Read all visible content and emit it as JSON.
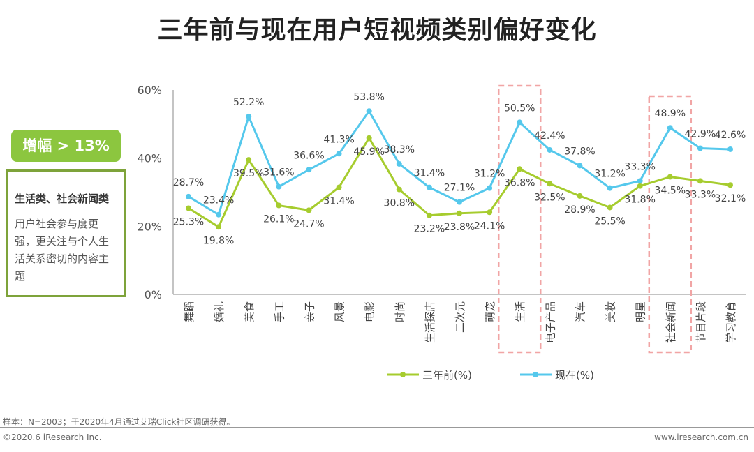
{
  "title": "三年前与现在用户短视频类别偏好变化",
  "badge": "增幅 > 13%",
  "note": {
    "heading": "生活类、社会新闻类",
    "body": "用户社会参与度更强，更关注与个人生活关系密切的内容主题"
  },
  "footer": {
    "source": "样本：N=2003；于2020年4月通过艾瑞Click社区调研获得。",
    "copyright": "©2020.6 iResearch Inc.",
    "website": "www.iresearch.com.cn"
  },
  "chart_data": {
    "type": "line",
    "title": "三年前与现在用户短视频类别偏好变化",
    "categories": [
      "舞蹈",
      "婚礼",
      "美食",
      "手工",
      "亲子",
      "风景",
      "电影",
      "时尚",
      "生活探店",
      "二次元",
      "萌宠",
      "生活",
      "电子产品",
      "汽车",
      "美妆",
      "明星",
      "社会新闻",
      "节目片段",
      "学习教育"
    ],
    "series": [
      {
        "name": "三年前(%)",
        "color": "#a6cc2e",
        "values": [
          25.3,
          19.8,
          39.5,
          26.1,
          24.7,
          31.4,
          45.9,
          30.8,
          23.2,
          23.8,
          24.1,
          36.8,
          32.5,
          28.9,
          25.5,
          31.8,
          34.5,
          33.3,
          32.1
        ]
      },
      {
        "name": "现在(%)",
        "color": "#55c8ec",
        "values": [
          28.7,
          23.4,
          52.2,
          31.6,
          36.6,
          41.3,
          53.8,
          38.3,
          31.4,
          27.1,
          31.2,
          50.5,
          42.4,
          37.8,
          31.2,
          33.3,
          48.9,
          42.9,
          42.6
        ]
      }
    ],
    "yticks": [
      "0%",
      "20%",
      "40%",
      "60%"
    ],
    "ylim": [
      0,
      60
    ],
    "highlighted": [
      "生活",
      "社会新闻"
    ],
    "legend": "bottom"
  }
}
